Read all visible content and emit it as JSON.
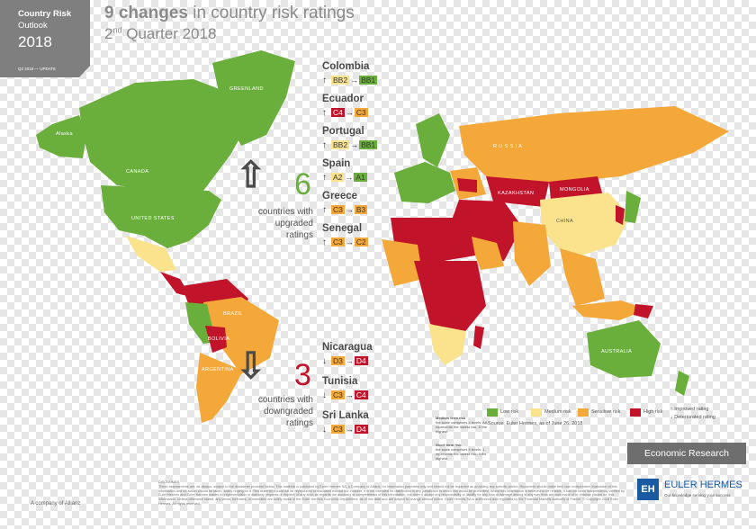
{
  "header": {
    "title": "Country Risk",
    "subtitle": "Outlook",
    "year": "2018",
    "tag": "Q2 2018 — UPDATE"
  },
  "headline": {
    "changes_count": "9 changes",
    "changes_text": "in country risk ratings",
    "quarter_num": "2",
    "quarter_sup": "nd",
    "quarter_text": "Quarter 2018"
  },
  "map_labels": {
    "greenland": "GREENLAND",
    "alaska": "Alaska",
    "canada": "CANADA",
    "usa": "UNITED STATES",
    "brazil": "BRAZIL",
    "russia": "R U S S I A",
    "china": "CHINA",
    "australia": "AUSTRALIA",
    "kazakhstan": "KAZAKHSTAN",
    "mongolia": "MONGOLIA",
    "argentina": "ARGENTINA",
    "bolivia": "BOLIVIA"
  },
  "upgraded": {
    "count": "6",
    "caption_lines": [
      "countries with",
      "upgraded",
      "ratings"
    ],
    "items": [
      {
        "name": "Colombia",
        "arrow": "↑",
        "from": "BB2",
        "to": "BB1",
        "from_risk": "medium",
        "to_risk": "low"
      },
      {
        "name": "Ecuador",
        "arrow": "↑",
        "from": "C4",
        "to": "C3",
        "from_risk": "high",
        "to_risk": "sensitive"
      },
      {
        "name": "Portugal",
        "arrow": "↑",
        "from": "BB2",
        "to": "BB1",
        "from_risk": "medium",
        "to_risk": "low"
      },
      {
        "name": "Spain",
        "arrow": "↑",
        "from": "A2",
        "to": "A1",
        "from_risk": "medium",
        "to_risk": "low"
      },
      {
        "name": "Greece",
        "arrow": "↑",
        "from": "C3",
        "to": "B3",
        "from_risk": "sensitive",
        "to_risk": "sensitive"
      },
      {
        "name": "Senegal",
        "arrow": "↑",
        "from": "C3",
        "to": "C2",
        "from_risk": "sensitive",
        "to_risk": "sensitive"
      }
    ]
  },
  "downgraded": {
    "count": "3",
    "caption_lines": [
      "countries with",
      "downgraded",
      "ratings"
    ],
    "items": [
      {
        "name": "Nicaragua",
        "arrow": "↓",
        "from": "D3",
        "to": "D4",
        "from_risk": "sensitive",
        "to_risk": "high"
      },
      {
        "name": "Tunisia",
        "arrow": "↓",
        "from": "C3",
        "to": "C4",
        "from_risk": "sensitive",
        "to_risk": "high"
      },
      {
        "name": "Sri Lanka",
        "arrow": "↓",
        "from": "C3",
        "to": "D4",
        "from_risk": "sensitive",
        "to_risk": "high"
      }
    ]
  },
  "legend": {
    "low": "Low risk",
    "medium": "Medium risk",
    "sensitive": "Sensitive risk",
    "high": "High risk",
    "improved": "Improved rating",
    "deteriorated": "Deteriorated rating",
    "source": "Source: Euler Hermes, as of June 26, 2018",
    "medium_term_title": "Medium term risk",
    "medium_term_text": "the scale comprises 4 levels: AA represents the lowest risk, D the highest",
    "short_term_title": "Short term risk",
    "short_term_text": "the scale comprises 4 levels: 1 represents the lowest risk, 4 the highest"
  },
  "colors": {
    "low": "#6aae3c",
    "medium": "#fbe38e",
    "sensitive": "#f5a83a",
    "high": "#c1142b",
    "grey_box": "#7f7f7f",
    "brand_blue": "#1a5aa0"
  },
  "footer": {
    "economic_research": "Economic Research",
    "brand_initials": "EH",
    "brand_name": "EULER HERMES",
    "brand_tagline": "Our knowledge serving your success",
    "company": "A company of Allianz",
    "disclaimer_title": "DISCLAIMER",
    "disclaimer": "These assessments are, as always, subject to the disclaimer provided below. This material is published by Euler Hermes SA, a Company of Allianz, for information purposes only and should not be regarded as providing any specific advice. Recipients should make their own independent evaluation of this information and no action should be taken, solely relying on it. This material should not be reproduced or disclosed without our consent. It is not intended for distribution in any jurisdiction in which this would be prohibited. Whilst this information is believed to be reliable, it has not been independently verified by Euler Hermes and Euler Hermes makes no representation or warranty (express or implied) of any kind, as regards the accuracy or completeness of this information, nor does it accept any responsibility or liability for any loss or damage arising in any way from any use made of or reliance placed on, this information. Unless otherwise stated, any views, forecasts, or estimates are solely those of the Euler Hermes Economic Department, as of this date and are subject to change without notice. Euler Hermes SA is authorized and regulated by the Financial Markets Authority of France. © Copyright 2018 Euler Hermes. All rights reserved."
  }
}
